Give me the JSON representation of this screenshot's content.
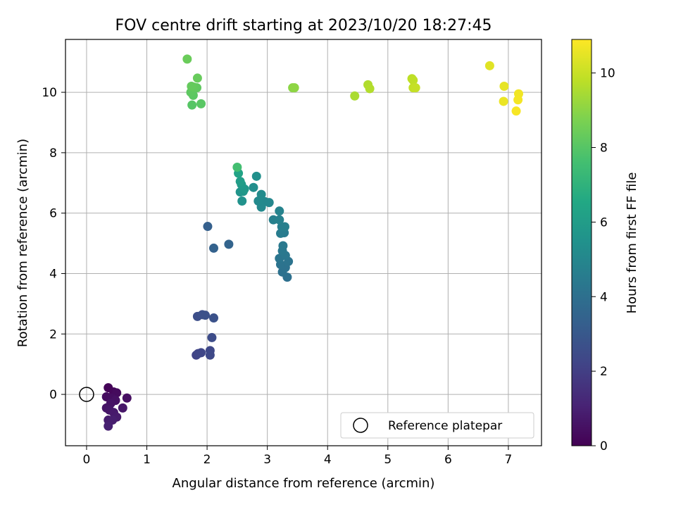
{
  "chart_data": {
    "type": "scatter",
    "title": "FOV centre drift starting at 2023/10/20 18:27:45",
    "xlabel": "Angular distance from reference (arcmin)",
    "ylabel": "Rotation from reference (arcmin)",
    "xlim": [
      -0.35,
      7.55
    ],
    "ylim": [
      -1.7,
      11.75
    ],
    "xticks": [
      0,
      1,
      2,
      3,
      4,
      5,
      6,
      7
    ],
    "yticks": [
      0,
      2,
      4,
      6,
      8,
      10
    ],
    "grid": true,
    "colormap": "viridis",
    "colorbar": {
      "label": "Hours from first FF file",
      "range": [
        0,
        10.9
      ],
      "ticks": [
        0,
        2,
        4,
        6,
        8,
        10
      ]
    },
    "legend": {
      "position": "bottom-right",
      "entries": [
        "Reference platepar"
      ]
    },
    "reference": {
      "x": 0,
      "y": 0,
      "label": "Reference platepar"
    },
    "points": [
      {
        "x": 0.36,
        "y": 0.22,
        "t": 0.1
      },
      {
        "x": 0.45,
        "y": 0.08,
        "t": 0.2
      },
      {
        "x": 0.5,
        "y": 0.05,
        "t": 0.3
      },
      {
        "x": 0.33,
        "y": -0.08,
        "t": 0.35
      },
      {
        "x": 0.42,
        "y": -0.12,
        "t": 0.4
      },
      {
        "x": 0.67,
        "y": -0.12,
        "t": 0.45
      },
      {
        "x": 0.48,
        "y": -0.2,
        "t": 0.5
      },
      {
        "x": 0.4,
        "y": -0.3,
        "t": 0.55
      },
      {
        "x": 0.33,
        "y": -0.45,
        "t": 0.6
      },
      {
        "x": 0.38,
        "y": -0.52,
        "t": 0.65
      },
      {
        "x": 0.6,
        "y": -0.45,
        "t": 0.7
      },
      {
        "x": 0.45,
        "y": -0.6,
        "t": 0.75
      },
      {
        "x": 0.5,
        "y": -0.75,
        "t": 0.8
      },
      {
        "x": 0.36,
        "y": -0.85,
        "t": 0.85
      },
      {
        "x": 0.43,
        "y": -0.85,
        "t": 0.9
      },
      {
        "x": 0.36,
        "y": -1.05,
        "t": 0.95
      },
      {
        "x": 1.82,
        "y": 1.3,
        "t": 2.2
      },
      {
        "x": 1.85,
        "y": 1.35,
        "t": 2.25
      },
      {
        "x": 1.9,
        "y": 1.38,
        "t": 2.3
      },
      {
        "x": 2.05,
        "y": 1.45,
        "t": 2.35
      },
      {
        "x": 2.05,
        "y": 1.3,
        "t": 2.4
      },
      {
        "x": 2.08,
        "y": 1.88,
        "t": 2.5
      },
      {
        "x": 1.84,
        "y": 2.58,
        "t": 2.6
      },
      {
        "x": 1.92,
        "y": 2.64,
        "t": 2.65
      },
      {
        "x": 1.97,
        "y": 2.62,
        "t": 2.7
      },
      {
        "x": 2.11,
        "y": 2.53,
        "t": 2.75
      },
      {
        "x": 2.01,
        "y": 5.56,
        "t": 3.3
      },
      {
        "x": 2.11,
        "y": 4.84,
        "t": 3.4
      },
      {
        "x": 2.36,
        "y": 4.97,
        "t": 3.5
      },
      {
        "x": 3.33,
        "y": 3.88,
        "t": 4.0
      },
      {
        "x": 3.25,
        "y": 4.05,
        "t": 4.05
      },
      {
        "x": 3.3,
        "y": 4.2,
        "t": 4.1
      },
      {
        "x": 3.22,
        "y": 4.3,
        "t": 4.15
      },
      {
        "x": 3.35,
        "y": 4.4,
        "t": 4.2
      },
      {
        "x": 3.2,
        "y": 4.5,
        "t": 4.25
      },
      {
        "x": 3.3,
        "y": 4.6,
        "t": 4.3
      },
      {
        "x": 3.25,
        "y": 4.75,
        "t": 4.35
      },
      {
        "x": 3.26,
        "y": 4.92,
        "t": 4.4
      },
      {
        "x": 3.28,
        "y": 5.35,
        "t": 4.5
      },
      {
        "x": 3.22,
        "y": 5.33,
        "t": 4.55
      },
      {
        "x": 3.24,
        "y": 5.55,
        "t": 4.6
      },
      {
        "x": 3.29,
        "y": 5.55,
        "t": 4.65
      },
      {
        "x": 3.1,
        "y": 5.78,
        "t": 4.7
      },
      {
        "x": 3.2,
        "y": 5.78,
        "t": 4.75
      },
      {
        "x": 3.2,
        "y": 6.07,
        "t": 4.85
      },
      {
        "x": 3.03,
        "y": 6.35,
        "t": 5.0
      },
      {
        "x": 2.96,
        "y": 6.38,
        "t": 5.05
      },
      {
        "x": 2.9,
        "y": 6.2,
        "t": 5.1
      },
      {
        "x": 2.85,
        "y": 6.4,
        "t": 5.15
      },
      {
        "x": 2.9,
        "y": 6.62,
        "t": 5.2
      },
      {
        "x": 2.77,
        "y": 6.85,
        "t": 5.3
      },
      {
        "x": 2.82,
        "y": 7.22,
        "t": 5.4
      },
      {
        "x": 2.58,
        "y": 6.4,
        "t": 5.5
      },
      {
        "x": 2.55,
        "y": 6.7,
        "t": 5.6
      },
      {
        "x": 2.6,
        "y": 6.72,
        "t": 5.7
      },
      {
        "x": 2.62,
        "y": 6.8,
        "t": 5.8
      },
      {
        "x": 2.57,
        "y": 6.95,
        "t": 5.9
      },
      {
        "x": 2.55,
        "y": 7.05,
        "t": 6.0
      },
      {
        "x": 2.52,
        "y": 7.32,
        "t": 6.3
      },
      {
        "x": 2.5,
        "y": 7.52,
        "t": 7.6
      },
      {
        "x": 1.75,
        "y": 9.58,
        "t": 8.0
      },
      {
        "x": 1.9,
        "y": 9.62,
        "t": 8.05
      },
      {
        "x": 1.77,
        "y": 9.9,
        "t": 8.1
      },
      {
        "x": 1.73,
        "y": 10.0,
        "t": 8.15
      },
      {
        "x": 1.83,
        "y": 10.15,
        "t": 8.2
      },
      {
        "x": 1.78,
        "y": 10.17,
        "t": 8.25
      },
      {
        "x": 1.74,
        "y": 10.2,
        "t": 8.3
      },
      {
        "x": 1.84,
        "y": 10.47,
        "t": 8.35
      },
      {
        "x": 1.67,
        "y": 11.1,
        "t": 8.4
      },
      {
        "x": 3.42,
        "y": 10.15,
        "t": 9.0
      },
      {
        "x": 3.45,
        "y": 10.15,
        "t": 9.05
      },
      {
        "x": 4.45,
        "y": 9.88,
        "t": 9.5
      },
      {
        "x": 4.67,
        "y": 10.25,
        "t": 9.6
      },
      {
        "x": 4.7,
        "y": 10.12,
        "t": 9.65
      },
      {
        "x": 5.4,
        "y": 10.45,
        "t": 9.8
      },
      {
        "x": 5.42,
        "y": 10.4,
        "t": 9.85
      },
      {
        "x": 5.42,
        "y": 10.15,
        "t": 9.9
      },
      {
        "x": 5.46,
        "y": 10.15,
        "t": 9.95
      },
      {
        "x": 6.69,
        "y": 10.88,
        "t": 10.4
      },
      {
        "x": 6.93,
        "y": 10.2,
        "t": 10.5
      },
      {
        "x": 6.92,
        "y": 9.7,
        "t": 10.6
      },
      {
        "x": 7.17,
        "y": 9.95,
        "t": 10.7
      },
      {
        "x": 7.16,
        "y": 9.75,
        "t": 10.75
      },
      {
        "x": 7.13,
        "y": 9.38,
        "t": 10.8
      }
    ]
  }
}
